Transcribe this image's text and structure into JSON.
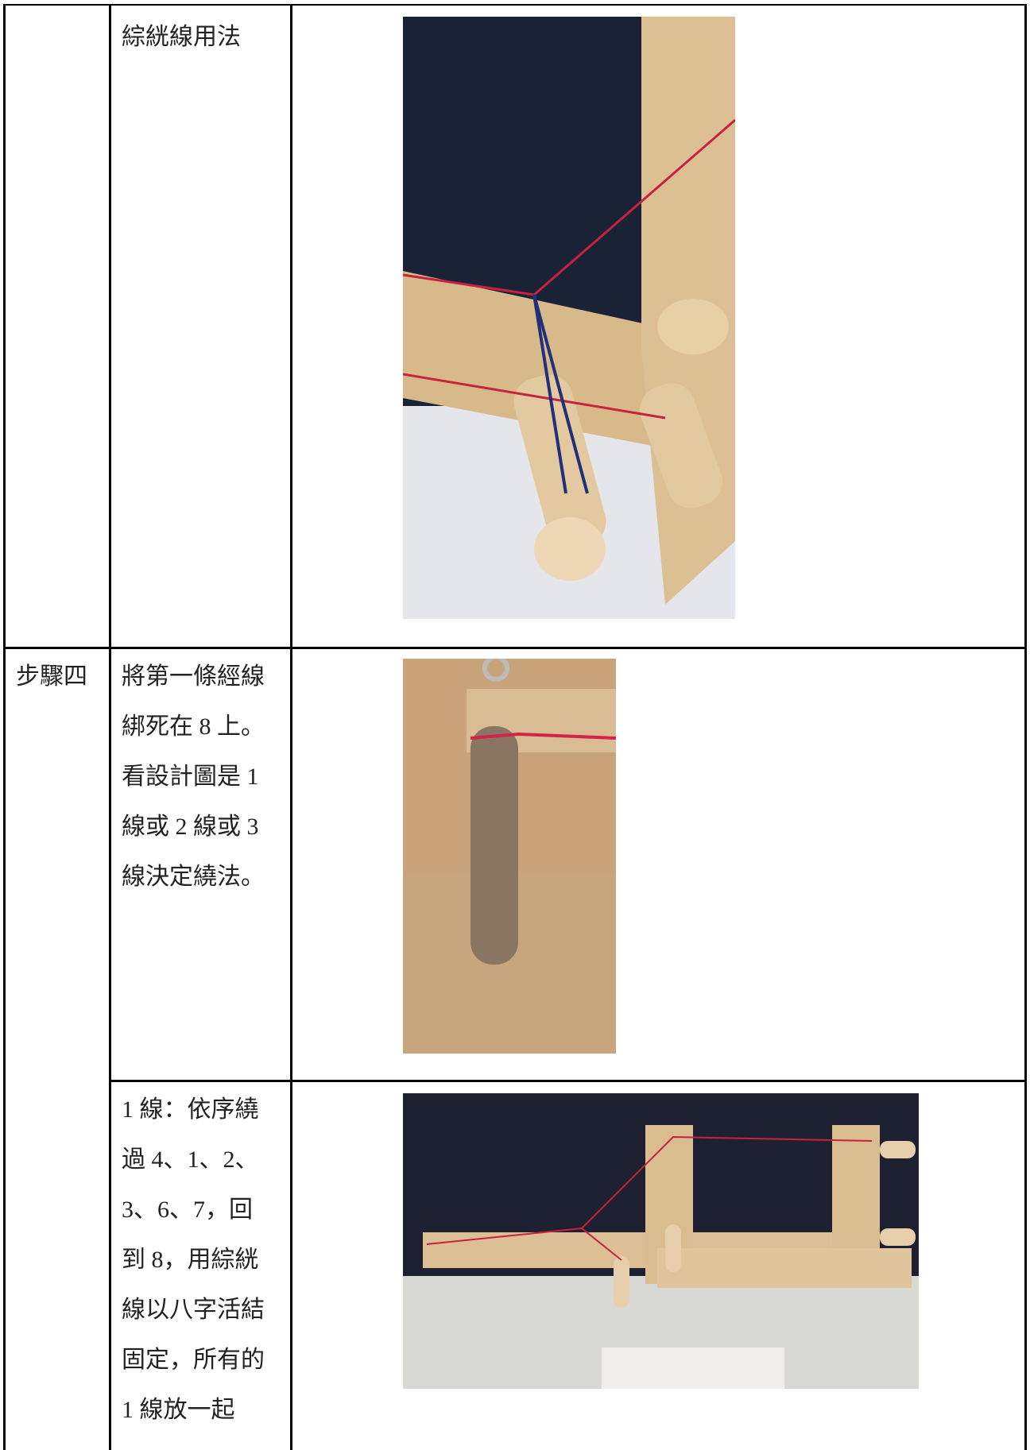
{
  "table": {
    "rows": [
      {
        "step": null,
        "lines": [
          "綜絖線用法"
        ]
      },
      {
        "step": "步驟四",
        "lines": [
          "將第一條經線",
          "綁死在 8 上。",
          "看設計圖是 1",
          "線或 2 線或 3",
          "線決定繞法。"
        ]
      },
      {
        "step": null,
        "lines": [
          "1 線：依序繞",
          "過 4、1、2、",
          "3、6、7，回",
          "到 8，用綜絖",
          "線以八字活結",
          "固定，所有的",
          "1 線放一起"
        ]
      }
    ]
  }
}
